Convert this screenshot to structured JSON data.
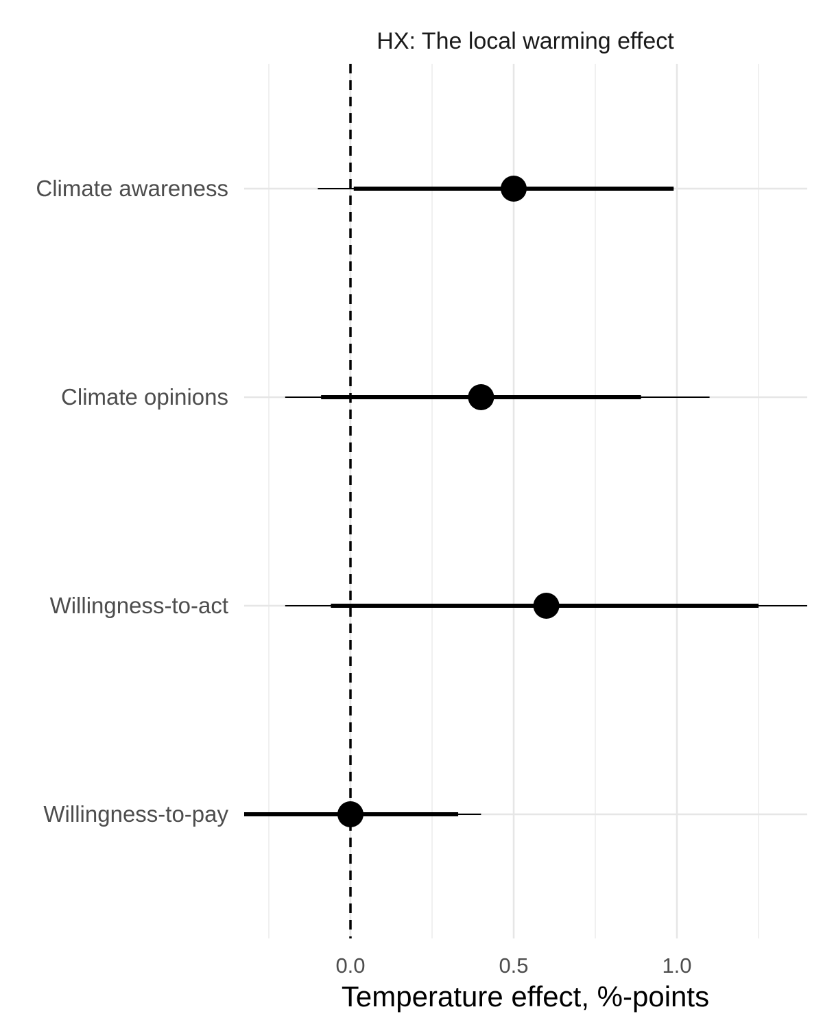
{
  "chart_data": {
    "type": "scatter",
    "subtype": "coefficient-plot",
    "title": "HX: The local warming effect",
    "xlabel": "Temperature effect, %-points",
    "ylabel": "",
    "xlim": [
      -0.33,
      1.4
    ],
    "x_ticks": [
      0.0,
      0.5,
      1.0
    ],
    "x_tick_labels": [
      "0.0",
      "0.5",
      "1.0"
    ],
    "x_minor_ticks": [
      -0.25,
      0.25,
      0.75,
      1.25
    ],
    "reference_line": {
      "x": 0,
      "style": "dashed",
      "color": "#000000"
    },
    "grid": true,
    "legend": "none",
    "colors": {
      "points": "#000000",
      "grid": "#e6e6e6",
      "tick_text": "#4d4d4d"
    },
    "categories": [
      "Climate awareness",
      "Climate opinions",
      "Willingness-to-act",
      "Willingness-to-pay"
    ],
    "series": [
      {
        "estimate": [
          0.5,
          0.4,
          0.6,
          0.0
        ],
        "ci_outer_low": [
          -0.1,
          -0.2,
          -0.2,
          -0.33
        ],
        "ci_outer_high": [
          0.99,
          1.1,
          1.4,
          0.4
        ],
        "ci_inner_low": [
          0.01,
          -0.09,
          -0.06,
          -0.33
        ],
        "ci_inner_high": [
          0.99,
          0.89,
          1.25,
          0.33
        ]
      }
    ]
  }
}
